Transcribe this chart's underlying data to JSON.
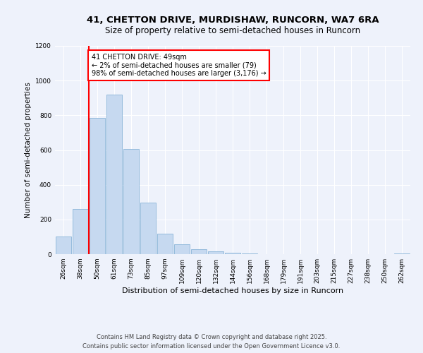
{
  "title_line1": "41, CHETTON DRIVE, MURDISHAW, RUNCORN, WA7 6RA",
  "title_line2": "Size of property relative to semi-detached houses in Runcorn",
  "xlabel": "Distribution of semi-detached houses by size in Runcorn",
  "ylabel": "Number of semi-detached properties",
  "annotation_title": "41 CHETTON DRIVE: 49sqm",
  "annotation_line2": "← 2% of semi-detached houses are smaller (79)",
  "annotation_line3": "98% of semi-detached houses are larger (3,176) →",
  "footer_line1": "Contains HM Land Registry data © Crown copyright and database right 2025.",
  "footer_line2": "Contains public sector information licensed under the Open Government Licence v3.0.",
  "bin_labels": [
    "26sqm",
    "38sqm",
    "50sqm",
    "61sqm",
    "73sqm",
    "85sqm",
    "97sqm",
    "109sqm",
    "120sqm",
    "132sqm",
    "144sqm",
    "156sqm",
    "168sqm",
    "179sqm",
    "191sqm",
    "203sqm",
    "215sqm",
    "227sqm",
    "238sqm",
    "250sqm",
    "262sqm"
  ],
  "bar_heights": [
    100,
    260,
    785,
    920,
    605,
    295,
    120,
    55,
    30,
    15,
    8,
    4,
    2,
    1,
    1,
    0,
    0,
    0,
    0,
    0,
    5
  ],
  "bar_color": "#c6d9f0",
  "bar_edge_color": "#8ab4d8",
  "property_line_color": "red",
  "ylim": [
    0,
    1200
  ],
  "yticks": [
    0,
    200,
    400,
    600,
    800,
    1000,
    1200
  ],
  "background_color": "#eef2fb",
  "grid_color": "#ffffff",
  "title_fontsize": 9.5,
  "subtitle_fontsize": 8.5,
  "ylabel_fontsize": 7.5,
  "xlabel_fontsize": 8,
  "tick_fontsize": 6.5,
  "annotation_fontsize": 7,
  "footer_fontsize": 6
}
